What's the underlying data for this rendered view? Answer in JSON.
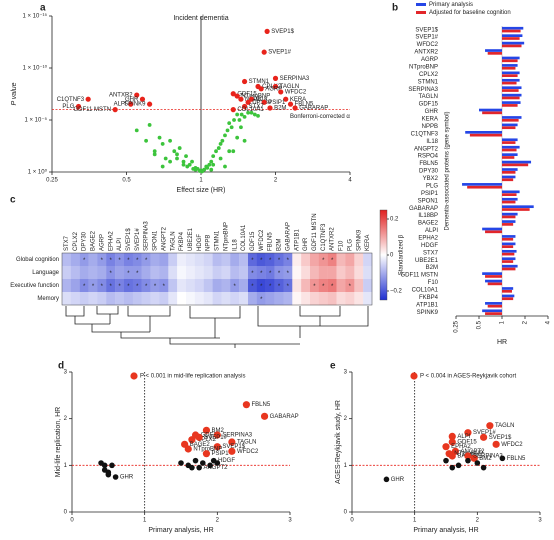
{
  "chart_data": [
    {
      "type": "scatter",
      "label": "a",
      "title": "Incident dementia",
      "xlabel": "Effect size (HR)",
      "ylabel": "P value",
      "xscale": "log",
      "yscale": "log",
      "xlim": [
        0.25,
        4
      ],
      "ylim": [
        1,
        1e-15
      ],
      "xticks": [
        0.25,
        0.5,
        1,
        2,
        4
      ],
      "yticks": [
        {
          "value": 1,
          "label": "1 × 10⁰"
        },
        {
          "value": 1e-05,
          "label": "1 × 10⁻⁵"
        },
        {
          "value": 1e-10,
          "label": "1 × 10⁻¹⁰"
        },
        {
          "value": 1e-15,
          "label": "1 × 10⁻¹⁵"
        }
      ],
      "xref": 1,
      "threshold": 1e-06,
      "threshold_color": "#e8231b",
      "annotation": "Bonferroni-corrected α",
      "series": [
        {
          "color": "#3cc43c",
          "x": [
            0.55,
            0.6,
            0.62,
            0.65,
            0.68,
            0.7,
            0.72,
            0.75,
            0.78,
            0.8,
            0.82,
            0.85,
            0.87,
            0.9,
            0.92,
            0.95,
            0.97,
            0.99,
            1.01,
            1.03,
            1.05,
            1.08,
            1.1,
            1.12,
            1.15,
            1.18,
            1.2,
            1.22,
            1.25,
            1.28,
            1.3,
            1.33,
            1.36,
            1.4,
            1.43,
            1.46,
            1.5,
            1.55,
            1.6,
            1.65,
            0.75,
            0.8,
            0.88,
            0.93,
            1.0,
            1.06,
            1.12,
            1.2,
            1.3,
            1.4,
            0.7,
            0.85,
            0.95,
            1.1,
            1.25,
            1.35,
            1.5,
            1.7,
            0.65,
            1.45
          ],
          "y": [
            0.0001,
            0.001,
            3e-05,
            0.01,
            0.0005,
            0.002,
            0.05,
            0.001,
            0.01,
            0.02,
            0.005,
            0.1,
            0.03,
            0.2,
            0.1,
            0.4,
            0.5,
            0.8,
            0.9,
            0.6,
            0.3,
            0.2,
            0.1,
            0.03,
            0.01,
            0.005,
            0.002,
            0.001,
            0.0003,
            0.0001,
            2e-05,
            5e-05,
            1e-05,
            3e-06,
            1e-05,
            3e-06,
            5e-06,
            2e-06,
            2e-06,
            3e-06,
            0.1,
            0.05,
            0.3,
            0.5,
            0.7,
            0.4,
            0.2,
            0.05,
            0.01,
            0.0005,
            0.3,
            0.2,
            0.6,
            0.6,
            0.3,
            0.01,
            0.001,
            4e-06,
            0.02,
            5e-05
          ]
        },
        {
          "color": "#e8231b",
          "x": [
            1.85,
            1.8,
            2.0,
            1.5,
            1.7,
            2.0,
            1.35,
            1.75,
            2.1,
            1.4,
            1.45,
            1.6,
            2.2,
            1.55,
            1.8,
            2.3,
            1.5,
            1.35,
            1.9,
            2.4,
            0.55,
            0.58,
            0.35,
            0.52,
            0.62,
            0.32,
            0.45
          ],
          "y": [
            3e-14,
            3e-12,
            1e-09,
            2e-09,
            6e-09,
            6e-09,
            3e-08,
            1e-08,
            2e-08,
            5e-08,
            1e-07,
            1e-07,
            1e-07,
            2e-07,
            2e-07,
            3e-07,
            5e-07,
            1e-06,
            7e-07,
            7e-07,
            4e-08,
            1e-07,
            1e-07,
            3e-07,
            3e-07,
            5e-07,
            1e-06
          ],
          "labels": [
            "SVEP1$",
            "SVEP1#",
            "SERPINA3",
            "STMN1",
            "CPLX2",
            "TAGLN",
            "GDF15",
            "AGRP",
            "WFDC2",
            "NTproBNP",
            "NPPB",
            "IL18",
            "KERA",
            "DPY30",
            "PSIP1",
            "FBLN5",
            "STX7",
            "COL10A1",
            "B2M",
            "GABARAP",
            "ANTXR2",
            "GHR",
            "C1QTNF3",
            "ALPI",
            "SPINK9",
            "PLG",
            "GDF11 MSTN"
          ]
        }
      ]
    },
    {
      "type": "bar",
      "label": "b",
      "orientation": "horizontal",
      "ylabel": "Dementia-associated proteins (gene symbol)",
      "xlabel": "HR",
      "xscale": "log",
      "xlim": [
        0.25,
        4
      ],
      "xticks": [
        0.25,
        0.5,
        1,
        2,
        4
      ],
      "xref": 1,
      "categories": [
        "SVEP1$",
        "SVEP1#",
        "WFDC2",
        "ANTXR2",
        "AGRP",
        "NTproBNP",
        "CPLX2",
        "STMN1",
        "SERPINA3",
        "TAGLN",
        "GDF15",
        "GHR",
        "KERA",
        "NPPB",
        "C1QTNF3",
        "IL18",
        "ANGPT2",
        "RSPO4",
        "FBLN5",
        "DPY30",
        "YBX2",
        "PLG",
        "PSIP1",
        "SPON1",
        "GABARAP",
        "IL18BP",
        "BAGE2",
        "ALPI",
        "EPHA2",
        "HDGF",
        "STX7",
        "UBE2E1",
        "B2M",
        "GDF11 MSTN",
        "F10",
        "COL10A1",
        "FKBP4",
        "ATP1B1",
        "SPINK9"
      ],
      "series": [
        {
          "name": "Primary analysis",
          "color": "#2546e6",
          "values": [
            1.9,
            1.85,
            1.95,
            0.6,
            1.7,
            1.6,
            1.7,
            1.7,
            1.8,
            1.8,
            1.75,
            0.5,
            1.8,
            1.6,
            0.33,
            1.6,
            1.7,
            1.6,
            2.4,
            1.6,
            1.5,
            0.3,
            1.7,
            1.6,
            2.6,
            1.6,
            1.5,
            0.55,
            1.5,
            1.5,
            1.55,
            1.5,
            1.6,
            0.55,
            0.6,
            1.4,
            1.45,
            0.6,
            0.55
          ]
        },
        {
          "name": "Adjusted for baseline cognition",
          "color": "#e2262a",
          "values": [
            1.75,
            1.7,
            1.8,
            0.65,
            1.6,
            1.5,
            1.6,
            1.55,
            1.65,
            1.7,
            1.6,
            0.55,
            1.65,
            1.5,
            0.38,
            1.5,
            1.55,
            1.45,
            2.2,
            1.5,
            1.4,
            0.35,
            1.55,
            1.5,
            2.3,
            1.5,
            1.4,
            0.6,
            1.4,
            1.4,
            1.45,
            1.4,
            1.5,
            0.6,
            0.65,
            1.35,
            1.4,
            0.65,
            0.6
          ]
        }
      ]
    },
    {
      "type": "heatmap",
      "label": "c",
      "colorbar_label": "Standardized β",
      "rows": [
        "Global cognition",
        "Language",
        "Executive function",
        "Memory"
      ],
      "columns": [
        "STX7",
        "CPLX2",
        "DPY30",
        "BAGE2",
        "AGRP",
        "EPHA2",
        "ALPI",
        "SVEP1$",
        "SVEP1#",
        "SERPINA3",
        "SPON1",
        "ANGPT2",
        "TAGLN",
        "FKBP4",
        "UBE2E1",
        "HDGF",
        "NPPB",
        "STMN1",
        "NTproBNP",
        "IL18",
        "COL10A1",
        "GDF15",
        "WFDC2",
        "FBLN5",
        "B2M",
        "GABARAP",
        "ATP1B1",
        "GHR",
        "GDF11 MSTN",
        "C1QTNF3",
        "ANTXR2",
        "F10",
        "PLG",
        "SPINK9",
        "KERA"
      ],
      "clim": [
        -0.25,
        0.25
      ],
      "cticks": [
        {
          "value": -0.2,
          "label": "−0.2"
        },
        0,
        0.2
      ],
      "cmap": [
        "#1f2fd0",
        "#ffffff",
        "#e02020"
      ],
      "values": [
        [
          -0.08,
          -0.1,
          -0.12,
          -0.1,
          -0.12,
          -0.15,
          -0.13,
          -0.15,
          -0.14,
          -0.12,
          -0.1,
          -0.11,
          -0.06,
          -0.02,
          -0.03,
          -0.04,
          -0.05,
          -0.08,
          -0.07,
          -0.1,
          -0.08,
          -0.18,
          -0.2,
          -0.19,
          -0.17,
          -0.15,
          0.02,
          0.06,
          0.1,
          0.12,
          0.14,
          0.08,
          0.1,
          0.05,
          -0.05
        ],
        [
          -0.06,
          -0.08,
          -0.1,
          -0.09,
          -0.1,
          -0.13,
          -0.11,
          -0.12,
          -0.12,
          -0.1,
          -0.08,
          -0.09,
          -0.04,
          -0.01,
          -0.02,
          -0.03,
          -0.04,
          -0.06,
          -0.05,
          -0.08,
          -0.07,
          -0.14,
          -0.15,
          -0.16,
          -0.13,
          -0.12,
          0.01,
          0.04,
          0.08,
          0.1,
          0.1,
          0.06,
          0.08,
          0.04,
          -0.04
        ],
        [
          -0.09,
          -0.11,
          -0.14,
          -0.12,
          -0.14,
          -0.17,
          -0.15,
          -0.17,
          -0.16,
          -0.14,
          -0.12,
          -0.13,
          -0.07,
          -0.03,
          -0.04,
          -0.05,
          -0.07,
          -0.1,
          -0.09,
          -0.12,
          -0.1,
          -0.2,
          -0.22,
          -0.21,
          -0.19,
          -0.17,
          0.03,
          0.08,
          0.12,
          0.14,
          0.15,
          0.1,
          0.12,
          0.07,
          -0.06
        ],
        [
          -0.04,
          -0.05,
          -0.06,
          -0.05,
          -0.06,
          -0.08,
          -0.07,
          -0.08,
          -0.07,
          -0.06,
          -0.05,
          -0.06,
          -0.03,
          0.0,
          -0.01,
          -0.02,
          -0.03,
          -0.05,
          -0.04,
          -0.05,
          -0.04,
          -0.1,
          -0.12,
          -0.11,
          -0.1,
          -0.09,
          0.01,
          0.03,
          0.05,
          0.06,
          0.07,
          0.04,
          0.05,
          0.03,
          -0.03
        ]
      ],
      "significance": [
        [
          null,
          null,
          "*",
          null,
          "*",
          "*",
          "*",
          "*",
          "*",
          "*",
          null,
          null,
          null,
          null,
          null,
          null,
          null,
          null,
          null,
          null,
          null,
          "*",
          "*",
          "*",
          "*",
          "*",
          null,
          null,
          null,
          "*",
          "*",
          null,
          null,
          null,
          null
        ],
        [
          null,
          null,
          null,
          null,
          null,
          "*",
          null,
          "*",
          "*",
          null,
          null,
          null,
          null,
          null,
          null,
          null,
          null,
          null,
          null,
          null,
          null,
          "*",
          "*",
          "*",
          "*",
          "*",
          null,
          null,
          null,
          null,
          null,
          null,
          null,
          null,
          null
        ],
        [
          null,
          null,
          "*",
          "*",
          "*",
          "*",
          "*",
          "*",
          "*",
          "*",
          "*",
          "*",
          null,
          null,
          null,
          null,
          null,
          null,
          null,
          "*",
          null,
          "*",
          "*",
          "*",
          "*",
          "*",
          null,
          null,
          "*",
          "*",
          "*",
          null,
          "*",
          null,
          null
        ],
        [
          null,
          null,
          null,
          null,
          null,
          null,
          null,
          null,
          null,
          null,
          null,
          null,
          null,
          null,
          null,
          null,
          null,
          null,
          null,
          null,
          null,
          null,
          "*",
          null,
          null,
          null,
          null,
          null,
          null,
          null,
          null,
          null,
          null,
          null,
          null
        ]
      ]
    },
    {
      "type": "scatter",
      "label": "d",
      "xlabel": "Primary analysis, HR",
      "ylabel": "Mid-life replication, HR",
      "xlim": [
        0,
        3
      ],
      "ylim": [
        0,
        3
      ],
      "xticks": [
        0,
        1,
        2,
        3
      ],
      "yticks": [
        0,
        1,
        2,
        3
      ],
      "xref": 1,
      "yref": 1,
      "ref_color": "#e8231b",
      "series": [
        {
          "name": "P < 0.001 in mid-life replication analysis",
          "color": "#e8361f",
          "x": [
            2.4,
            2.65,
            1.85,
            1.7,
            2.0,
            1.65,
            2.2,
            1.55,
            2.0,
            1.6,
            2.2,
            1.85,
            1.75
          ],
          "y": [
            2.3,
            2.05,
            1.75,
            1.65,
            1.65,
            1.55,
            1.5,
            1.45,
            1.4,
            1.35,
            1.3,
            1.25,
            1.6
          ],
          "labels": [
            "FBLN5",
            "GABARAP",
            "BM2",
            "GDF15",
            "SERPINA3",
            "CPLX2",
            "TAGLN",
            "BAGE2",
            "SVEP1$",
            "NTproBNP",
            "WFDC2",
            "PSIP1",
            "SVEP1#"
          ]
        },
        {
          "color": "#111111",
          "x": [
            0.4,
            0.45,
            0.5,
            0.55,
            0.6,
            0.5,
            0.45,
            1.5,
            1.6,
            1.7,
            1.75,
            1.8,
            1.9,
            1.95,
            2.0,
            1.65
          ],
          "y": [
            1.05,
            0.9,
            0.85,
            1.0,
            0.75,
            0.8,
            1.0,
            1.05,
            1.0,
            1.1,
            0.95,
            1.05,
            1.0,
            1.1,
            1.05,
            0.95
          ],
          "labels": [
            null,
            null,
            null,
            null,
            "GHR",
            null,
            null,
            null,
            null,
            null,
            "ANGPT2",
            null,
            null,
            "HDGF",
            null,
            null
          ]
        }
      ]
    },
    {
      "type": "scatter",
      "label": "e",
      "xlabel": "Primary analysis, HR",
      "ylabel": "AGES-Reykjavik study, HR",
      "xlim": [
        0,
        3
      ],
      "ylim": [
        0,
        3
      ],
      "xticks": [
        0,
        1,
        2,
        3
      ],
      "yticks": [
        0,
        1,
        2,
        3
      ],
      "xref": 1,
      "yref": 1,
      "ref_color": "#e8231b",
      "series": [
        {
          "name": "P < 0.004 in AGES-Reykjavik cohort",
          "color": "#e8361f",
          "x": [
            2.2,
            1.85,
            2.1,
            1.6,
            1.6,
            2.3,
            1.5,
            1.65,
            1.55,
            1.6,
            1.95,
            1.85
          ],
          "y": [
            1.85,
            1.7,
            1.6,
            1.62,
            1.5,
            1.45,
            1.4,
            1.3,
            1.25,
            1.2,
            1.15,
            1.2
          ],
          "labels": [
            "TAGLN",
            "SVEP1#",
            "SVEP1$",
            "ALPI",
            "GDF15",
            "WFDC2",
            "EPHA2",
            "ANGPT2",
            "NTproBNP",
            "BAGE2",
            "BM2",
            "SERPINA3"
          ]
        },
        {
          "color": "#111111",
          "x": [
            0.55,
            1.5,
            1.7,
            1.85,
            2.0,
            2.1,
            2.4,
            1.6
          ],
          "y": [
            0.7,
            1.1,
            1.0,
            1.1,
            1.05,
            0.95,
            1.15,
            0.95
          ],
          "labels": [
            "GHR",
            null,
            null,
            null,
            null,
            null,
            "FBLN5",
            null
          ]
        }
      ]
    }
  ]
}
